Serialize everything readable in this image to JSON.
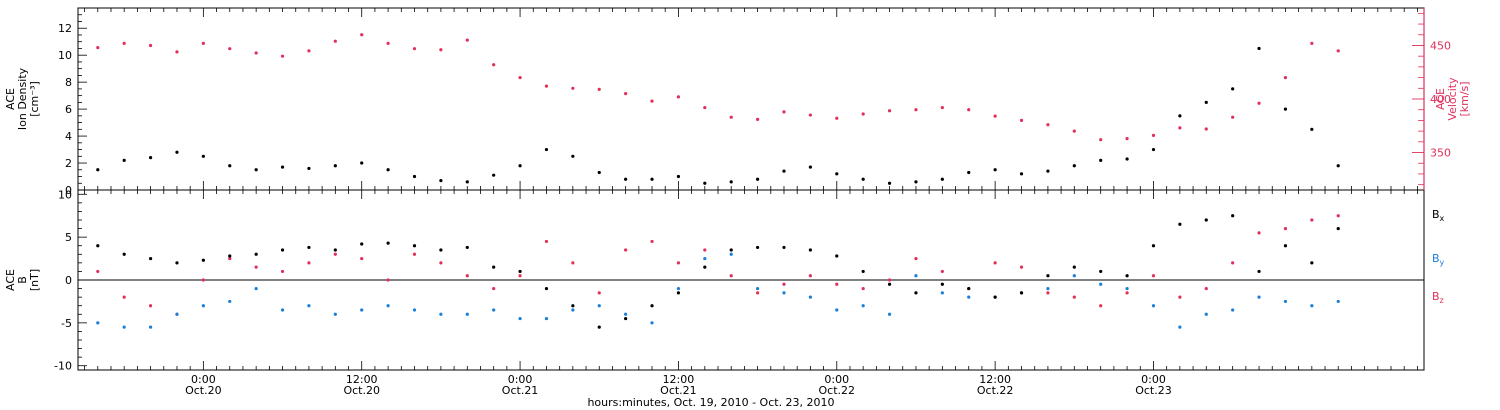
{
  "chart_data": [
    {
      "type": "scatter",
      "panel": "top",
      "ylabel_left": [
        "ACE",
        "Ion Density",
        "[cm⁻³]"
      ],
      "ylabel_right": [
        "ACE",
        "Velocity",
        "[km/s]"
      ],
      "left_ticks": [
        0,
        2,
        4,
        6,
        8,
        10,
        12
      ],
      "left_ylim": [
        0,
        13.5
      ],
      "right_ticks": [
        350,
        400,
        450
      ],
      "right_ylim": [
        315,
        485
      ],
      "series": [
        {
          "axis": "left",
          "color": "#000000",
          "x": [
            -8,
            -6,
            -4,
            -2,
            0,
            2,
            4,
            6,
            8,
            10,
            12,
            14,
            16,
            18,
            20,
            22,
            24,
            26,
            28,
            30,
            32,
            34,
            36,
            38,
            40,
            42,
            44,
            46,
            48,
            50,
            52,
            54,
            56,
            58,
            60,
            62,
            64,
            66,
            68,
            70,
            72,
            74,
            76,
            78,
            80,
            82,
            84,
            86
          ],
          "y": [
            1.5,
            2.2,
            2.4,
            2.8,
            2.5,
            1.8,
            1.5,
            1.7,
            1.6,
            1.8,
            2.0,
            1.5,
            1.0,
            0.7,
            0.6,
            1.1,
            1.8,
            3.0,
            2.5,
            1.3,
            0.8,
            0.8,
            1.0,
            0.5,
            0.6,
            0.8,
            1.4,
            1.7,
            1.2,
            0.8,
            0.5,
            0.6,
            0.8,
            1.3,
            1.5,
            1.2,
            1.4,
            1.8,
            2.2,
            2.3,
            3.0,
            5.5,
            6.5,
            7.5,
            10.5,
            6.0,
            4.5,
            1.8
          ]
        },
        {
          "axis": "right",
          "color": "#e0305a",
          "x": [
            -8,
            -6,
            -4,
            -2,
            0,
            2,
            4,
            6,
            8,
            10,
            12,
            14,
            16,
            18,
            20,
            22,
            24,
            26,
            28,
            30,
            32,
            34,
            36,
            38,
            40,
            42,
            44,
            46,
            48,
            50,
            52,
            54,
            56,
            58,
            60,
            62,
            64,
            66,
            68,
            70,
            72,
            74,
            76,
            78,
            80,
            82,
            84,
            86
          ],
          "y": [
            448,
            452,
            450,
            444,
            452,
            447,
            443,
            440,
            445,
            454,
            460,
            452,
            447,
            446,
            455,
            432,
            420,
            412,
            410,
            409,
            405,
            398,
            402,
            392,
            383,
            381,
            388,
            385,
            382,
            386,
            389,
            390,
            392,
            390,
            384,
            380,
            376,
            370,
            362,
            363,
            366,
            373,
            372,
            383,
            396,
            420,
            452,
            445
          ]
        }
      ]
    },
    {
      "type": "scatter",
      "panel": "bottom",
      "ylabel_left": [
        "ACE",
        "B",
        "[nT]"
      ],
      "ylim": [
        -10.5,
        10.5
      ],
      "ticks": [
        -10,
        -5,
        0,
        5,
        10
      ],
      "zero_line": true,
      "series": [
        {
          "name": "Bx",
          "color": "#000000",
          "x": [
            -8,
            -6,
            -4,
            -2,
            0,
            2,
            4,
            6,
            8,
            10,
            12,
            14,
            16,
            18,
            20,
            22,
            24,
            26,
            28,
            30,
            32,
            34,
            36,
            38,
            40,
            42,
            44,
            46,
            48,
            50,
            52,
            54,
            56,
            58,
            60,
            62,
            64,
            66,
            68,
            70,
            72,
            74,
            76,
            78,
            80,
            82,
            84,
            86
          ],
          "y": [
            4.0,
            3.0,
            2.5,
            2.0,
            2.3,
            2.8,
            3.0,
            3.5,
            3.8,
            3.5,
            4.2,
            4.3,
            4.0,
            3.5,
            3.8,
            1.5,
            1.0,
            -1.0,
            -3.0,
            -5.5,
            -4.5,
            -3.0,
            -1.5,
            1.5,
            3.5,
            3.8,
            3.8,
            3.5,
            2.8,
            1.0,
            -0.5,
            -1.5,
            -0.5,
            -1.0,
            -2.0,
            -1.5,
            0.5,
            1.5,
            1.0,
            0.5,
            4.0,
            6.5,
            7.0,
            7.5,
            1.0,
            4.0,
            2.0,
            6.0
          ]
        },
        {
          "name": "By",
          "color": "#1a7fd6",
          "x": [
            -8,
            -6,
            -4,
            -2,
            0,
            2,
            4,
            6,
            8,
            10,
            12,
            14,
            16,
            18,
            20,
            22,
            24,
            26,
            28,
            30,
            32,
            34,
            36,
            38,
            40,
            42,
            44,
            46,
            48,
            50,
            52,
            54,
            56,
            58,
            60,
            62,
            64,
            66,
            68,
            70,
            72,
            74,
            76,
            78,
            80,
            82,
            84,
            86
          ],
          "y": [
            -5.0,
            -5.5,
            -5.5,
            -4.0,
            -3.0,
            -2.5,
            -1.0,
            -3.5,
            -3.0,
            -4.0,
            -3.5,
            -3.0,
            -3.5,
            -4.0,
            -4.0,
            -3.5,
            -4.5,
            -4.5,
            -3.5,
            -3.0,
            -4.0,
            -5.0,
            -1.0,
            2.5,
            3.0,
            -1.0,
            -1.5,
            -2.0,
            -3.5,
            -3.0,
            -4.0,
            0.5,
            -1.5,
            -2.0,
            -2.0,
            -1.5,
            -1.0,
            0.5,
            -0.5,
            -1.0,
            -3.0,
            -5.5,
            -4.0,
            -3.5,
            -2.0,
            -2.5,
            -3.0,
            -2.5
          ]
        },
        {
          "name": "Bz",
          "color": "#e0305a",
          "x": [
            -8,
            -6,
            -4,
            -2,
            0,
            2,
            4,
            6,
            8,
            10,
            12,
            14,
            16,
            18,
            20,
            22,
            24,
            26,
            28,
            30,
            32,
            34,
            36,
            38,
            40,
            42,
            44,
            46,
            48,
            50,
            52,
            54,
            56,
            58,
            60,
            62,
            64,
            66,
            68,
            70,
            72,
            74,
            76,
            78,
            80,
            82,
            84,
            86
          ],
          "y": [
            1.0,
            -2.0,
            -3.0,
            -4.0,
            0.0,
            2.5,
            1.5,
            1.0,
            2.0,
            3.0,
            2.5,
            0.0,
            3.0,
            2.0,
            0.5,
            -1.0,
            0.5,
            4.5,
            2.0,
            -1.5,
            3.5,
            4.5,
            2.0,
            3.5,
            0.5,
            -1.5,
            -0.5,
            0.5,
            -0.5,
            -1.0,
            0.0,
            2.5,
            1.0,
            -1.0,
            2.0,
            1.5,
            -1.5,
            -2.0,
            -3.0,
            -1.5,
            0.5,
            -2.0,
            -1.0,
            2.0,
            5.5,
            6.0,
            7.0,
            7.5
          ]
        }
      ],
      "legend_placement": "right"
    }
  ],
  "x_axis": {
    "xlim_hours": [
      -9.5,
      92.5
    ],
    "tick_positions_hours": [
      0,
      12,
      24,
      36,
      48,
      60,
      72
    ],
    "tick_labels_time": [
      "0:00",
      "12:00",
      "0:00",
      "12:00",
      "0:00",
      "12:00",
      "0:00"
    ],
    "tick_labels_date": [
      "Oct.20",
      "Oct.20",
      "Oct.21",
      "Oct.21",
      "Oct.22",
      "Oct.22",
      "Oct.23"
    ],
    "minor_tick_every_hours": 1,
    "xlabel": "hours:minutes, Oct. 19, 2010 - Oct. 23, 2010"
  },
  "legend": {
    "items": [
      {
        "base": "B",
        "sub": "x",
        "color": "#000000"
      },
      {
        "base": "B",
        "sub": "y",
        "color": "#1a7fd6"
      },
      {
        "base": "B",
        "sub": "z",
        "color": "#e0305a"
      }
    ]
  }
}
